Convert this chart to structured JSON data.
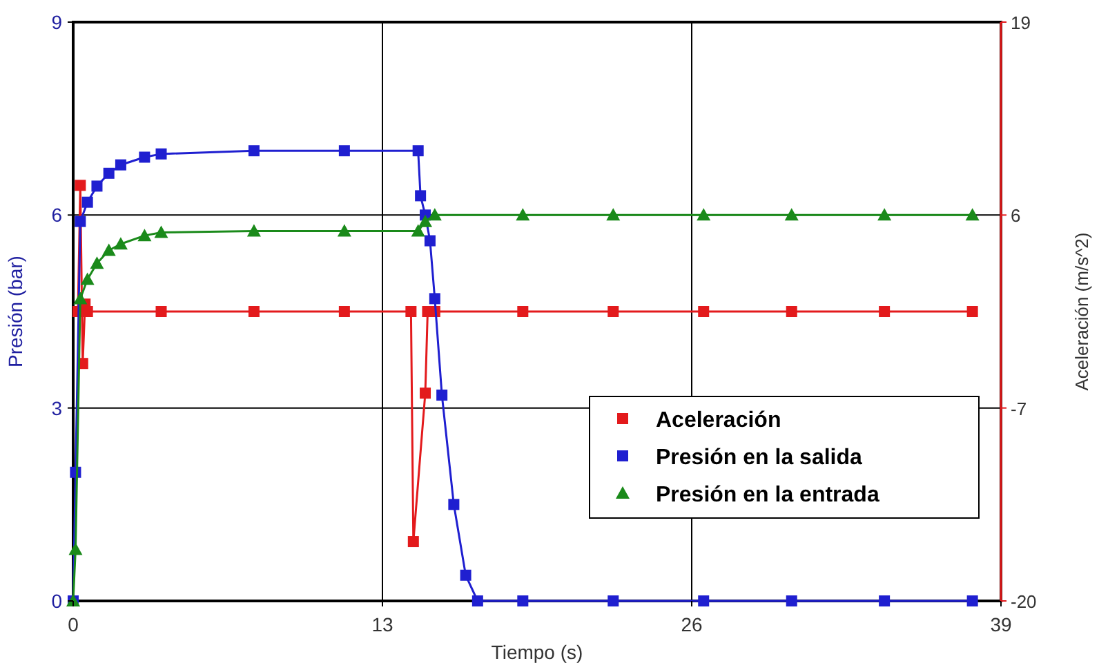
{
  "chart_data": {
    "type": "line",
    "xlabel": "Tiempo (s)",
    "ylabel": "Presión (bar)",
    "y2label": "Aceleración (m/s^2)",
    "xlim": [
      0,
      39
    ],
    "xticks": [
      0,
      13,
      26,
      39
    ],
    "ylim": [
      0,
      9
    ],
    "yticks": [
      0,
      3,
      6,
      9
    ],
    "y2lim": [
      -20,
      19
    ],
    "y2ticks": [
      -20,
      -7,
      6,
      19
    ],
    "grid": true,
    "legend": "bottom right",
    "line_style": "solid",
    "series": [
      {
        "name": "Aceleración",
        "color": "#e31a1c",
        "axis": "y2",
        "marker": "square",
        "x": [
          0.2,
          0.3,
          0.4,
          0.5,
          0.6,
          3.7,
          7.6,
          11.4,
          14.2,
          14.3,
          14.8,
          14.9,
          15.2,
          18.9,
          22.7,
          26.5,
          30.2,
          34.1,
          37.8
        ],
        "values": [
          -0.5,
          8,
          -4,
          0,
          -0.5,
          -0.5,
          -0.5,
          -0.5,
          -0.5,
          -16,
          -6,
          -0.5,
          -0.5,
          -0.5,
          -0.5,
          -0.5,
          -0.5,
          -0.5,
          -0.5
        ]
      },
      {
        "name": "Presión en la salida",
        "color": "#1f1fd0",
        "marker": "square",
        "x": [
          0,
          0.1,
          0.3,
          0.6,
          1,
          1.5,
          2,
          3,
          3.7,
          7.6,
          11.4,
          14.5,
          14.6,
          14.8,
          15,
          15.2,
          15.5,
          16,
          16.5,
          17,
          18.9,
          22.7,
          26.5,
          30.2,
          34.1,
          37.8
        ],
        "values": [
          0,
          2,
          5.9,
          6.2,
          6.45,
          6.65,
          6.78,
          6.9,
          6.95,
          7,
          7,
          7,
          6.3,
          6,
          5.6,
          4.7,
          3.2,
          1.5,
          0.4,
          0,
          0,
          0,
          0,
          0,
          0,
          0
        ]
      },
      {
        "name": "Presión en la entrada",
        "color": "#1a8a1a",
        "marker": "triangle",
        "x": [
          0,
          0.1,
          0.3,
          0.6,
          1,
          1.5,
          2,
          3,
          3.7,
          7.6,
          11.4,
          14.5,
          14.8,
          15.2,
          18.9,
          22.7,
          26.5,
          30.2,
          34.1,
          37.8
        ],
        "values": [
          0,
          0.8,
          4.7,
          5,
          5.25,
          5.45,
          5.55,
          5.68,
          5.73,
          5.75,
          5.75,
          5.75,
          5.9,
          6,
          6,
          6,
          6,
          6,
          6,
          6
        ]
      }
    ]
  }
}
